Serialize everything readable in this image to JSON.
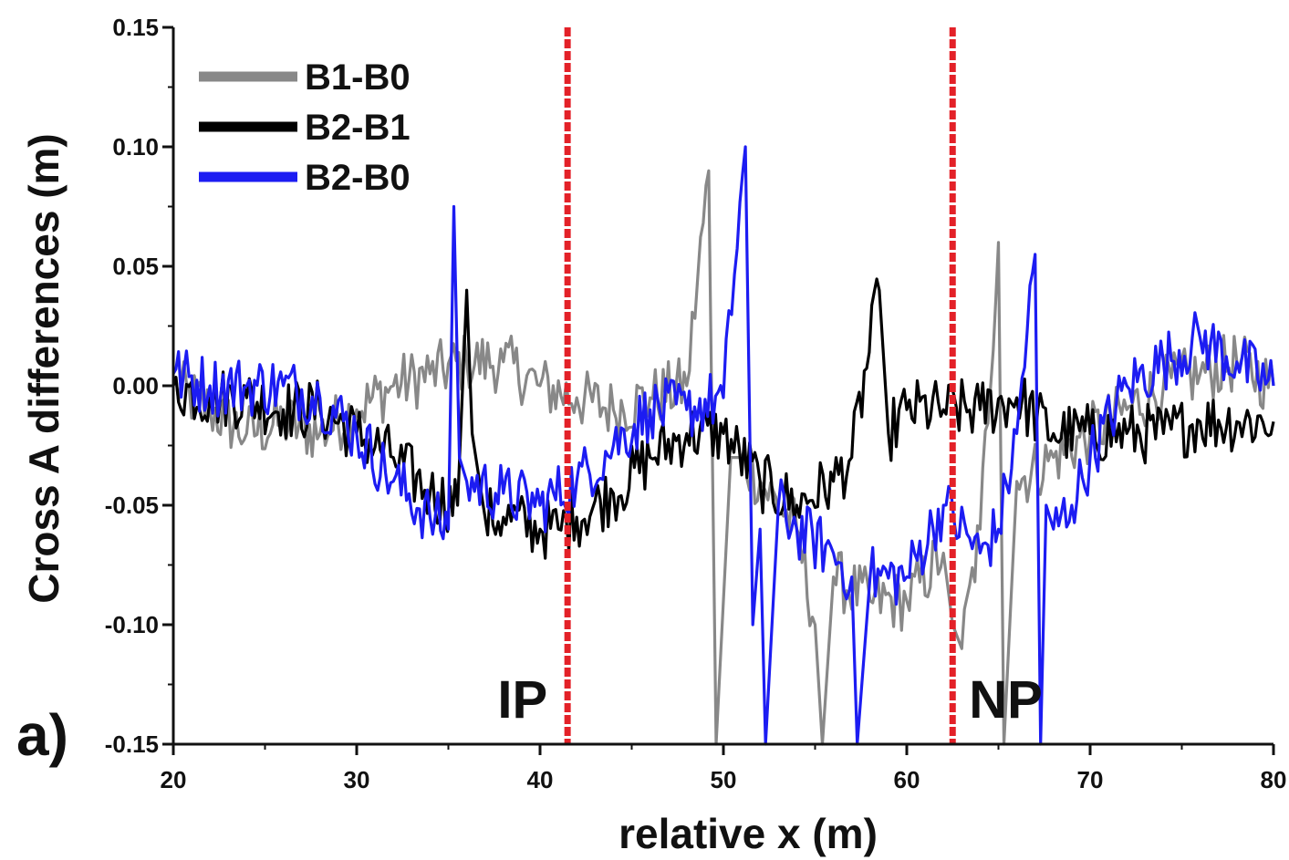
{
  "chart_data": {
    "type": "line",
    "panel_label": "a)",
    "xlabel": "relative x (m)",
    "ylabel": "Cross A differences (m)",
    "xlim": [
      20,
      80
    ],
    "ylim": [
      -0.15,
      0.15
    ],
    "x_ticks": [
      20,
      30,
      40,
      50,
      60,
      70,
      80
    ],
    "x_tick_labels": [
      "20",
      "30",
      "40",
      "50",
      "60",
      "70",
      "80"
    ],
    "y_ticks": [
      -0.15,
      -0.1,
      -0.05,
      0.0,
      0.05,
      0.1,
      0.15
    ],
    "y_tick_labels": [
      "-0.15",
      "-0.10",
      "-0.05",
      "0.00",
      "0.05",
      "0.10",
      "0.15"
    ],
    "legend_position": "top-left",
    "grid": false,
    "series": [
      {
        "name": "B1-B0",
        "color": "#888888",
        "x": [
          20,
          22,
          24,
          26,
          28,
          30,
          32,
          34,
          36,
          38,
          40,
          42,
          44,
          46,
          48,
          49.2,
          49.6,
          50,
          50.4,
          51,
          52,
          54,
          55,
          55.4,
          56,
          58,
          60,
          62,
          62.5,
          63,
          64,
          65,
          65.3,
          66,
          68,
          70,
          72,
          74,
          76,
          78,
          80
        ],
        "values": [
          0.0,
          -0.01,
          -0.02,
          -0.015,
          -0.02,
          -0.01,
          0.0,
          0.005,
          0.01,
          0.01,
          0.0,
          -0.005,
          -0.01,
          -0.005,
          0.0,
          0.09,
          -0.15,
          -0.09,
          -0.03,
          -0.03,
          -0.04,
          -0.06,
          -0.1,
          -0.15,
          -0.08,
          -0.09,
          -0.09,
          -0.07,
          -0.1,
          -0.11,
          -0.06,
          0.06,
          -0.15,
          -0.04,
          -0.03,
          -0.02,
          -0.01,
          0.0,
          0.005,
          0.01,
          0.0
        ]
      },
      {
        "name": "B2-B1",
        "color": "#000000",
        "x": [
          20,
          22,
          24,
          26,
          28,
          30,
          32,
          34,
          35.5,
          36,
          36.3,
          37,
          38,
          40,
          41,
          42,
          44,
          46,
          48,
          50,
          52,
          54,
          56,
          57,
          58.5,
          59,
          60,
          62,
          64,
          66,
          68,
          70,
          72,
          74,
          76,
          78,
          80
        ],
        "values": [
          0.0,
          -0.005,
          -0.005,
          -0.01,
          -0.01,
          -0.02,
          -0.03,
          -0.045,
          -0.05,
          0.04,
          -0.02,
          -0.055,
          -0.055,
          -0.06,
          -0.06,
          -0.055,
          -0.045,
          -0.03,
          -0.02,
          -0.02,
          -0.04,
          -0.05,
          -0.04,
          -0.03,
          0.04,
          -0.02,
          -0.01,
          -0.01,
          -0.01,
          -0.005,
          -0.02,
          -0.02,
          -0.02,
          -0.02,
          -0.015,
          -0.015,
          -0.015
        ]
      },
      {
        "name": "B2-B0",
        "color": "#1c1cf2",
        "x": [
          20,
          22,
          24,
          26,
          28,
          30,
          32,
          34,
          35,
          35.3,
          35.6,
          36,
          38,
          40,
          42,
          44,
          46,
          48,
          50,
          51.2,
          51.6,
          52,
          52.3,
          53,
          54,
          56,
          57,
          57.3,
          58,
          60,
          62,
          64,
          65,
          66,
          67,
          67.3,
          67.6,
          68,
          69,
          70,
          72,
          74,
          76,
          78,
          80
        ],
        "values": [
          0.005,
          0.0,
          0.0,
          0.0,
          -0.005,
          -0.02,
          -0.04,
          -0.055,
          -0.06,
          0.075,
          -0.03,
          -0.04,
          -0.045,
          -0.05,
          -0.04,
          -0.025,
          -0.01,
          -0.01,
          -0.005,
          0.1,
          -0.1,
          -0.06,
          -0.15,
          -0.05,
          -0.06,
          -0.07,
          -0.08,
          -0.15,
          -0.08,
          -0.08,
          -0.05,
          -0.07,
          -0.06,
          -0.02,
          0.055,
          -0.15,
          -0.05,
          -0.06,
          -0.05,
          -0.03,
          0.0,
          0.01,
          0.02,
          0.01,
          0.0
        ]
      }
    ],
    "markers": [
      {
        "label": "IP",
        "x": 41.5,
        "color": "#e32128"
      },
      {
        "label": "NP",
        "x": 62.5,
        "color": "#e32128"
      }
    ]
  }
}
